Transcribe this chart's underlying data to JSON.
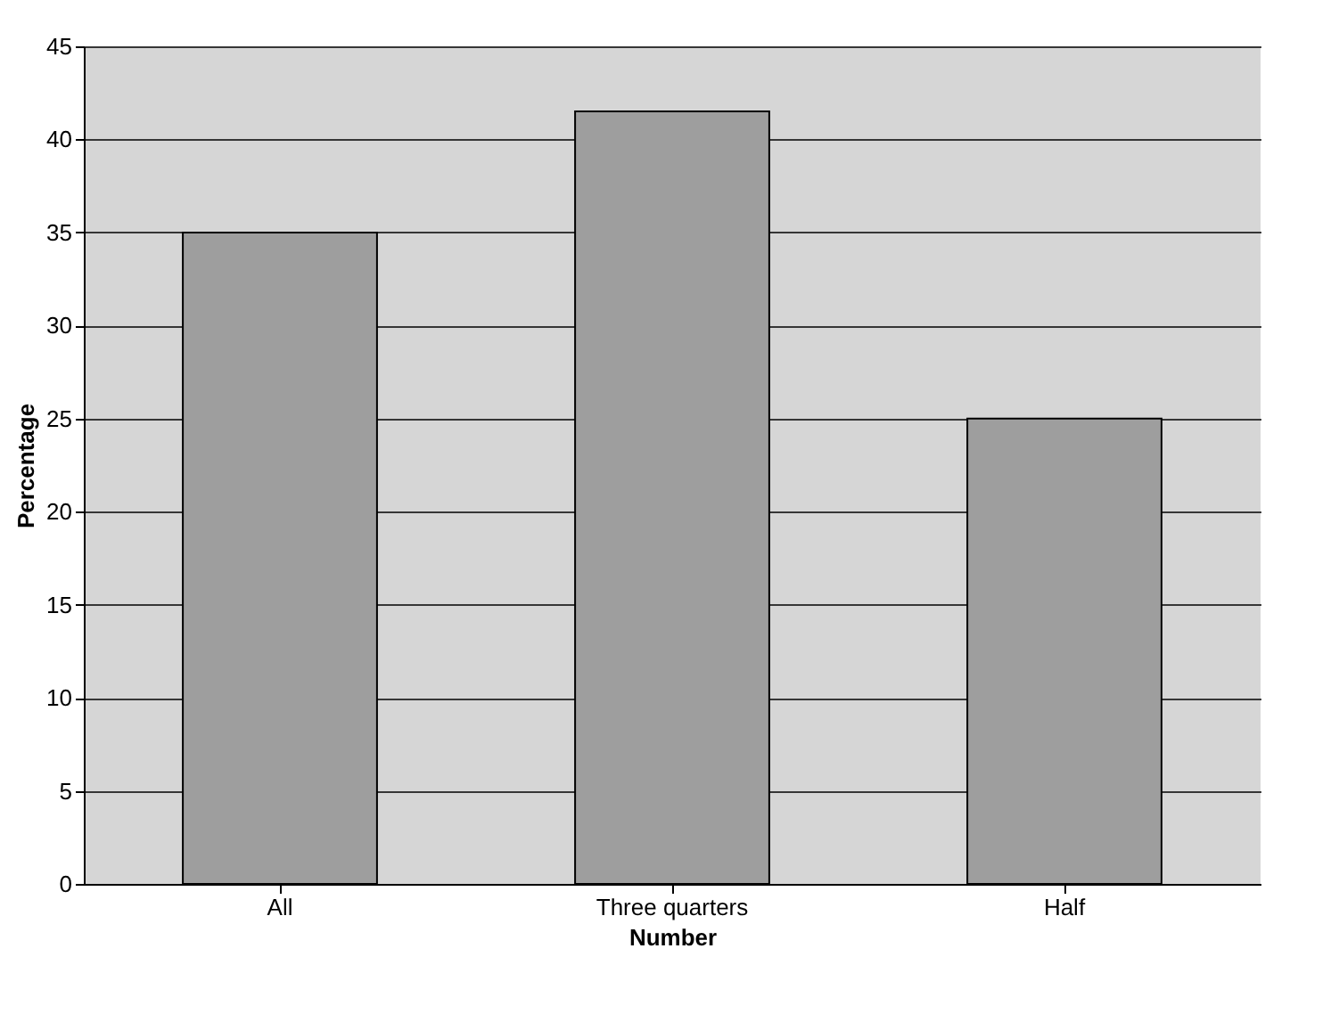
{
  "chart_data": {
    "type": "bar",
    "xlabel": "Number",
    "ylabel": "Percentage",
    "categories": [
      "All",
      "Three quarters",
      "Half"
    ],
    "values": [
      35,
      41.5,
      25
    ],
    "color": "#9e9e9e",
    "ylim": [
      0,
      45
    ],
    "yticks": [
      0,
      5,
      10,
      15,
      20,
      25,
      30,
      35,
      40,
      45
    ],
    "grid": "y"
  }
}
